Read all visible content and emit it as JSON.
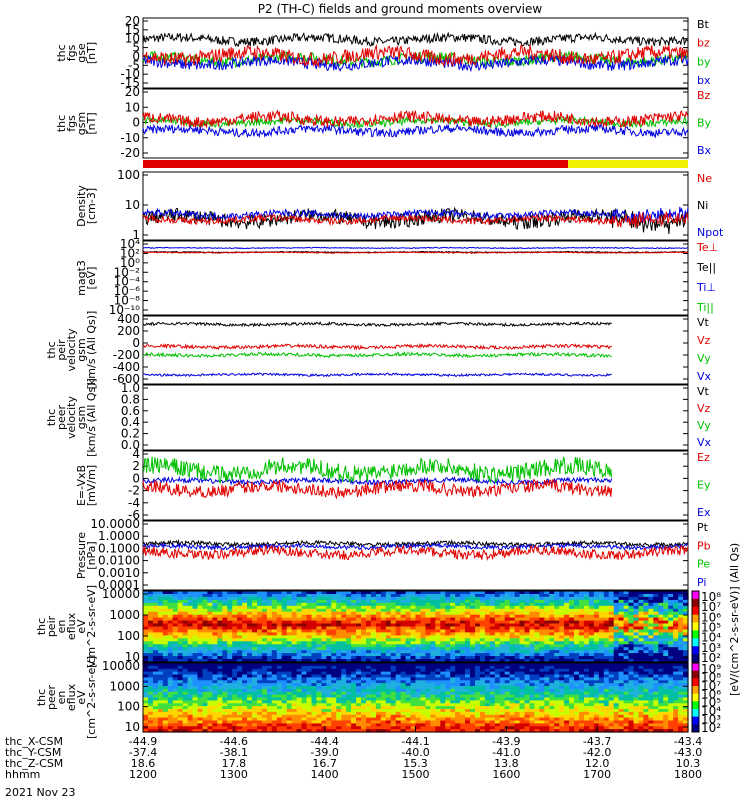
{
  "title": "P2 (TH-C) fields and ground moments overview",
  "chart_data": {
    "type": "line",
    "x": {
      "ticks": [
        "1200",
        "1300",
        "1400",
        "1500",
        "1600",
        "1700",
        "1800"
      ],
      "range": [
        1200,
        1800
      ]
    },
    "ephemeris": [
      {
        "label": "thc_X-CSM",
        "values": [
          "-44.9",
          "-44.6",
          "-44.4",
          "-44.1",
          "-43.9",
          "-43.7",
          "-43.4"
        ]
      },
      {
        "label": "thc_Y-CSM",
        "values": [
          "-37.4",
          "-38.1",
          "-39.0",
          "-40.0",
          "-41.0",
          "-42.0",
          "-43.0"
        ]
      },
      {
        "label": "thc_Z-CSM",
        "values": [
          "18.6",
          "17.8",
          "16.7",
          "15.3",
          "13.8",
          "12.0",
          "10.3"
        ]
      },
      {
        "label": "hhmm",
        "values": [
          "1200",
          "1300",
          "1400",
          "1500",
          "1600",
          "1700",
          "1800"
        ]
      }
    ],
    "date_label": "2021 Nov 23",
    "panels": [
      {
        "ylabel": [
          "thc",
          "fgs",
          "gse",
          "[nT]"
        ],
        "yticks": [
          "20",
          "15",
          "10",
          "5",
          "0",
          "-5",
          "-10",
          "-15"
        ],
        "ylim": [
          -17,
          22
        ],
        "legend": [
          {
            "label": "Bt",
            "color": "#000000"
          },
          {
            "label": "bz",
            "color": "#e00000"
          },
          {
            "label": "by",
            "color": "#00c000"
          },
          {
            "label": "bx",
            "color": "#0000e0"
          }
        ],
        "series": [
          {
            "color": "#000000",
            "base": 10,
            "noise": 2.5
          },
          {
            "color": "#00c000",
            "base": -1,
            "noise": 3
          },
          {
            "color": "#0000e0",
            "base": -3,
            "noise": 3
          },
          {
            "color": "#e00000",
            "base": 1,
            "noise": 4
          }
        ]
      },
      {
        "ylabel": [
          "thc",
          "fgs",
          "gsm",
          "[nT]"
        ],
        "yticks": [
          "20",
          "10",
          "0",
          "-10",
          "-20"
        ],
        "ylim": [
          -26,
          22
        ],
        "legend": [
          {
            "label": "Bz",
            "color": "#e00000"
          },
          {
            "label": "By",
            "color": "#00c000"
          },
          {
            "label": "Bx",
            "color": "#0000e0"
          }
        ],
        "series": [
          {
            "color": "#0000e0",
            "base": -7,
            "noise": 3
          },
          {
            "color": "#00c000",
            "base": -1,
            "noise": 2.5
          },
          {
            "color": "#e00000",
            "base": 1,
            "noise": 4
          }
        ]
      },
      {
        "ylabel": [
          "Density",
          "[cm-3]"
        ],
        "yticks": [
          "100",
          "10",
          "1"
        ],
        "log": true,
        "ylim": [
          0,
          2.4
        ],
        "legend": [
          {
            "label": "Ne",
            "color": "#e00000"
          },
          {
            "label": "Ni",
            "color": "#000000"
          },
          {
            "label": "Npot",
            "color": "#0000e0"
          }
        ],
        "series": [
          {
            "color": "#000000",
            "base": 0.75,
            "noise": 0.25
          },
          {
            "color": "#0000e0",
            "base": 0.9,
            "noise": 0.12
          },
          {
            "color": "#e00000",
            "base": 0.72,
            "noise": 0.12
          }
        ]
      },
      {
        "ylabel": [
          "magt3",
          "[eV]"
        ],
        "yticks": [
          "10⁴",
          "10²",
          "10⁰",
          "10⁻²",
          "10⁻⁴",
          "10⁻⁶",
          "10⁻⁸",
          "10⁻¹⁰"
        ],
        "log": true,
        "ylim": [
          -11,
          5
        ],
        "legend": [
          {
            "label": "Te⊥",
            "color": "#e00000"
          },
          {
            "label": "Te||",
            "color": "#000000"
          },
          {
            "label": "Ti⊥",
            "color": "#0000e0"
          },
          {
            "label": "Ti||",
            "color": "#00c000"
          }
        ],
        "series": [
          {
            "color": "#0000e0",
            "base": 3.5,
            "noise": 0.1
          },
          {
            "color": "#000000",
            "base": 2.6,
            "noise": 0.1
          },
          {
            "color": "#e00000",
            "base": 2.5,
            "noise": 0.1
          }
        ]
      },
      {
        "ylabel": [
          "thc",
          "peir",
          "velocity",
          "gsm",
          "[km/s (All Qs)]"
        ],
        "yticks": [
          "400",
          "200",
          "0",
          "-200",
          "-400",
          "-600"
        ],
        "ylim": [
          -620,
          620
        ],
        "legend": [
          {
            "label": "Vt",
            "color": "#000000"
          },
          {
            "label": "Vz",
            "color": "#e00000"
          },
          {
            "label": "Vy",
            "color": "#00c000"
          },
          {
            "label": "Vx",
            "color": "#0000e0"
          }
        ],
        "series": [
          {
            "color": "#000000",
            "base": 470,
            "noise": 25
          },
          {
            "color": "#e00000",
            "base": 60,
            "noise": 30
          },
          {
            "color": "#00c000",
            "base": -90,
            "noise": 30
          },
          {
            "color": "#0000e0",
            "base": -450,
            "noise": 20
          }
        ]
      },
      {
        "ylabel": [
          "thc",
          "peer",
          "velocity",
          "gsm",
          "[km/s (All Qs)]"
        ],
        "yticks": [
          "1.0",
          "0.8",
          "0.6",
          "0.4",
          "0.2",
          "0.0"
        ],
        "ylim": [
          0,
          1
        ],
        "legend": [
          {
            "label": "Vt",
            "color": "#000000"
          },
          {
            "label": "Vz",
            "color": "#e00000"
          },
          {
            "label": "Vy",
            "color": "#00c000"
          },
          {
            "label": "Vx",
            "color": "#0000e0"
          }
        ],
        "series": []
      },
      {
        "ylabel": [
          "E=-VxB",
          "[mV/m]"
        ],
        "yticks": [
          "4",
          "2",
          "0",
          "-2",
          "-4",
          "-6"
        ],
        "ylim": [
          -6.5,
          4.5
        ],
        "legend": [
          {
            "label": "Ez",
            "color": "#e00000"
          },
          {
            "label": "Ey",
            "color": "#00c000"
          },
          {
            "label": "Ex",
            "color": "#0000e0"
          }
        ],
        "series": [
          {
            "color": "#0000e0",
            "base": -0.3,
            "noise": 0.4
          },
          {
            "color": "#00c000",
            "base": 1.5,
            "noise": 1.4
          },
          {
            "color": "#e00000",
            "base": -1.5,
            "noise": 1
          }
        ]
      },
      {
        "ylabel": [
          "Pressure",
          "[nPa]"
        ],
        "yticks": [
          "10.0000",
          "1.0000",
          "0.1000",
          "0.0100",
          "0.0010",
          "0.0001"
        ],
        "log": true,
        "ylim": [
          -4,
          1
        ],
        "legend": [
          {
            "label": "Pt",
            "color": "#000000"
          },
          {
            "label": "Pb",
            "color": "#e00000"
          },
          {
            "label": "Pe",
            "color": "#00c000"
          },
          {
            "label": "Pi",
            "color": "#0000e0"
          }
        ],
        "series": [
          {
            "color": "#000000",
            "base": -0.65,
            "noise": 0.15
          },
          {
            "color": "#0000e0",
            "base": -0.85,
            "noise": 0.15
          },
          {
            "color": "#e00000",
            "base": -1.3,
            "noise": 0.35
          }
        ]
      },
      {
        "spectrogram": true,
        "ylabel": [
          "thc",
          "peir",
          "en",
          "eflux",
          "eV",
          "[cm^2-s-sr-eV]"
        ],
        "yticks": [
          "10000",
          "1000",
          "100",
          "10"
        ],
        "colorbar_label": "[eV/(cm^2-s-sr-eV)] (All Qs)",
        "colorbar_ticks": [
          "10⁸",
          "10⁷",
          "10⁶",
          "10⁵",
          "10⁴",
          "10³",
          "10²"
        ],
        "ylim": [
          0.7,
          4.3
        ]
      },
      {
        "spectrogram": true,
        "ylabel": [
          "thc",
          "peer",
          "en",
          "eflux",
          "eV",
          "[cm^2-s-sr-eV]"
        ],
        "yticks": [
          "10000",
          "1000",
          "100",
          "10"
        ],
        "colorbar_label": "[eV/(cm^2-s-sr-eV)] (All Qs)",
        "colorbar_ticks": [
          "10⁹",
          "10⁸",
          "10⁷",
          "10⁶",
          "10⁵",
          "10⁴",
          "10³",
          "10²"
        ],
        "ylim": [
          0.7,
          4.3
        ]
      }
    ]
  }
}
